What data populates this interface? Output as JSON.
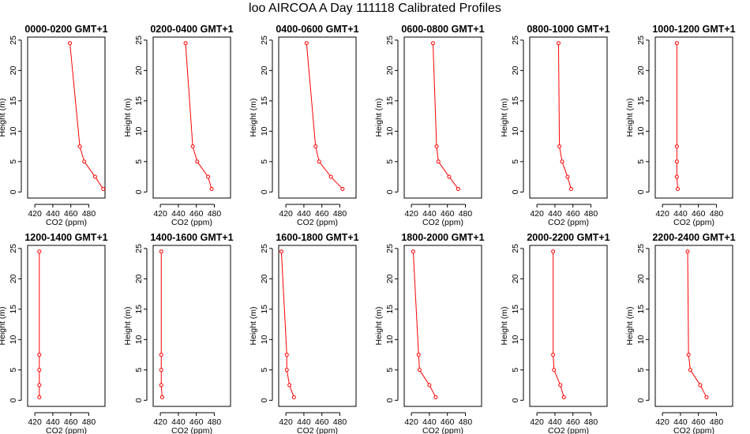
{
  "figure": {
    "title": "loo AIRCOA A  Day 111118  Calibrated Profiles"
  },
  "colors": {
    "profile_line": "#ff0000",
    "axis": "#000000"
  },
  "chart_data": [
    {
      "type": "line",
      "title": "0000-0200 GMT+1",
      "xlabel": "CO2 (ppm)",
      "ylabel": "Height (m)",
      "xlim": [
        412,
        498
      ],
      "ylim": [
        -1,
        25.5
      ],
      "xticks": [
        420,
        440,
        460,
        480
      ],
      "yticks": [
        0,
        5,
        10,
        15,
        20,
        25
      ],
      "series": [
        {
          "x": [
            459,
            470,
            475,
            487,
            496
          ],
          "y": [
            24.5,
            7.5,
            5,
            2.5,
            0.5
          ]
        }
      ]
    },
    {
      "type": "line",
      "title": "0200-0400 GMT+1",
      "xlabel": "CO2 (ppm)",
      "ylabel": "Height (m)",
      "xlim": [
        412,
        498
      ],
      "ylim": [
        -1,
        25.5
      ],
      "xticks": [
        420,
        440,
        460,
        480
      ],
      "yticks": [
        0,
        5,
        10,
        15,
        20,
        25
      ],
      "series": [
        {
          "x": [
            448,
            456,
            461,
            473,
            477
          ],
          "y": [
            24.5,
            7.5,
            5,
            2.5,
            0.5
          ]
        }
      ]
    },
    {
      "type": "line",
      "title": "0400-0600 GMT+1",
      "xlabel": "CO2 (ppm)",
      "ylabel": "Height (m)",
      "xlim": [
        412,
        498
      ],
      "ylim": [
        -1,
        25.5
      ],
      "xticks": [
        420,
        440,
        460,
        480
      ],
      "yticks": [
        0,
        5,
        10,
        15,
        20,
        25
      ],
      "series": [
        {
          "x": [
            443,
            453,
            457,
            470,
            483
          ],
          "y": [
            24.5,
            7.5,
            5,
            2.5,
            0.5
          ]
        }
      ]
    },
    {
      "type": "line",
      "title": "0600-0800 GMT+1",
      "xlabel": "CO2 (ppm)",
      "ylabel": "Height (m)",
      "xlim": [
        412,
        498
      ],
      "ylim": [
        -1,
        25.5
      ],
      "xticks": [
        420,
        440,
        460,
        480
      ],
      "yticks": [
        0,
        5,
        10,
        15,
        20,
        25
      ],
      "series": [
        {
          "x": [
            444,
            448,
            450,
            462,
            472
          ],
          "y": [
            24.5,
            7.5,
            5,
            2.5,
            0.5
          ]
        }
      ]
    },
    {
      "type": "line",
      "title": "0800-1000 GMT+1",
      "xlabel": "CO2 (ppm)",
      "ylabel": "Height (m)",
      "xlim": [
        412,
        498
      ],
      "ylim": [
        -1,
        25.5
      ],
      "xticks": [
        420,
        440,
        460,
        480
      ],
      "yticks": [
        0,
        5,
        10,
        15,
        20,
        25
      ],
      "series": [
        {
          "x": [
            444,
            445,
            448,
            454,
            458
          ],
          "y": [
            24.5,
            7.5,
            5,
            2.5,
            0.5
          ]
        }
      ]
    },
    {
      "type": "line",
      "title": "1000-1200 GMT+1",
      "xlabel": "CO2 (ppm)",
      "ylabel": "Height (m)",
      "xlim": [
        412,
        498
      ],
      "ylim": [
        -1,
        25.5
      ],
      "xticks": [
        420,
        440,
        460,
        480
      ],
      "yticks": [
        0,
        5,
        10,
        15,
        20,
        25
      ],
      "series": [
        {
          "x": [
            436,
            436,
            436,
            436,
            437
          ],
          "y": [
            24.5,
            7.5,
            5,
            2.5,
            0.5
          ]
        }
      ]
    },
    {
      "type": "line",
      "title": "1200-1400 GMT+1",
      "xlabel": "CO2 (ppm)",
      "ylabel": "Height (m)",
      "xlim": [
        412,
        498
      ],
      "ylim": [
        -1,
        25.5
      ],
      "xticks": [
        420,
        440,
        460,
        480
      ],
      "yticks": [
        0,
        5,
        10,
        15,
        20,
        25
      ],
      "series": [
        {
          "x": [
            425,
            425,
            425,
            425,
            425
          ],
          "y": [
            24.5,
            7.5,
            5,
            2.5,
            0.5
          ]
        }
      ]
    },
    {
      "type": "line",
      "title": "1400-1600 GMT+1",
      "xlabel": "CO2 (ppm)",
      "ylabel": "Height (m)",
      "xlim": [
        412,
        498
      ],
      "ylim": [
        -1,
        25.5
      ],
      "xticks": [
        420,
        440,
        460,
        480
      ],
      "yticks": [
        0,
        5,
        10,
        15,
        20,
        25
      ],
      "series": [
        {
          "x": [
            421,
            421,
            421,
            421,
            422
          ],
          "y": [
            24.5,
            7.5,
            5,
            2.5,
            0.5
          ]
        }
      ]
    },
    {
      "type": "line",
      "title": "1600-1800 GMT+1",
      "xlabel": "CO2 (ppm)",
      "ylabel": "Height (m)",
      "xlim": [
        412,
        498
      ],
      "ylim": [
        -1,
        25.5
      ],
      "xticks": [
        420,
        440,
        460,
        480
      ],
      "yticks": [
        0,
        5,
        10,
        15,
        20,
        25
      ],
      "series": [
        {
          "x": [
            415,
            421,
            421,
            424,
            429
          ],
          "y": [
            24.5,
            7.5,
            5,
            2.5,
            0.5
          ]
        }
      ]
    },
    {
      "type": "line",
      "title": "1800-2000 GMT+1",
      "xlabel": "CO2 (ppm)",
      "ylabel": "Height (m)",
      "xlim": [
        412,
        498
      ],
      "ylim": [
        -1,
        25.5
      ],
      "xticks": [
        420,
        440,
        460,
        480
      ],
      "yticks": [
        0,
        5,
        10,
        15,
        20,
        25
      ],
      "series": [
        {
          "x": [
            422,
            428,
            429,
            440,
            447
          ],
          "y": [
            24.5,
            7.5,
            5,
            2.5,
            0.5
          ]
        }
      ]
    },
    {
      "type": "line",
      "title": "2000-2200 GMT+1",
      "xlabel": "CO2 (ppm)",
      "ylabel": "Height (m)",
      "xlim": [
        412,
        498
      ],
      "ylim": [
        -1,
        25.5
      ],
      "xticks": [
        420,
        440,
        460,
        480
      ],
      "yticks": [
        0,
        5,
        10,
        15,
        20,
        25
      ],
      "series": [
        {
          "x": [
            438,
            438,
            439,
            446,
            450
          ],
          "y": [
            24.5,
            7.5,
            5,
            2.5,
            0.5
          ]
        }
      ]
    },
    {
      "type": "line",
      "title": "2200-2400 GMT+1",
      "xlabel": "CO2 (ppm)",
      "ylabel": "Height (m)",
      "xlim": [
        412,
        498
      ],
      "ylim": [
        -1,
        25.5
      ],
      "xticks": [
        420,
        440,
        460,
        480
      ],
      "yticks": [
        0,
        5,
        10,
        15,
        20,
        25
      ],
      "series": [
        {
          "x": [
            448,
            449,
            451,
            462,
            469
          ],
          "y": [
            24.5,
            7.5,
            5,
            2.5,
            0.5
          ]
        }
      ]
    }
  ]
}
